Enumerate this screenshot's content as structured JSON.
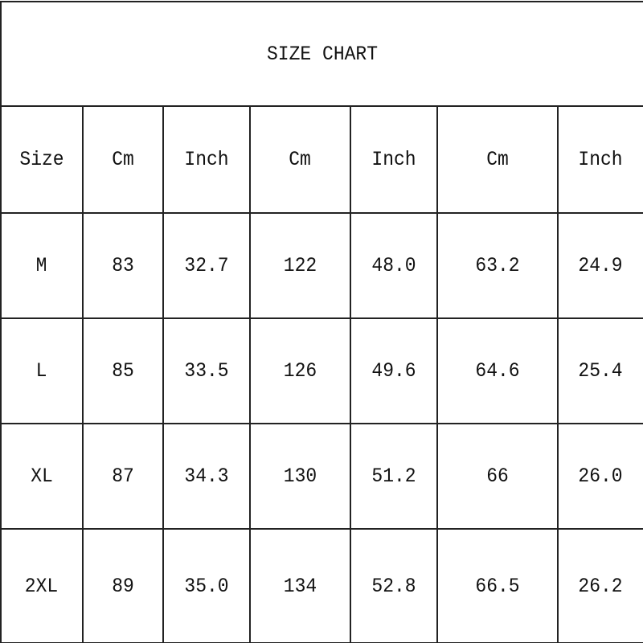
{
  "title": "SIZE CHART",
  "headers": [
    "Size",
    "Cm",
    "Inch",
    "Cm",
    "Inch",
    "Cm",
    "Inch"
  ],
  "rows": [
    [
      "M",
      "83",
      "32.7",
      "122",
      "48.0",
      "63.2",
      "24.9"
    ],
    [
      "L",
      "85",
      "33.5",
      "126",
      "49.6",
      "64.6",
      "25.4"
    ],
    [
      "XL",
      "87",
      "34.3",
      "130",
      "51.2",
      "66",
      "26.0"
    ],
    [
      "2XL",
      "89",
      "35.0",
      "134",
      "52.8",
      "66.5",
      "26.2"
    ]
  ]
}
